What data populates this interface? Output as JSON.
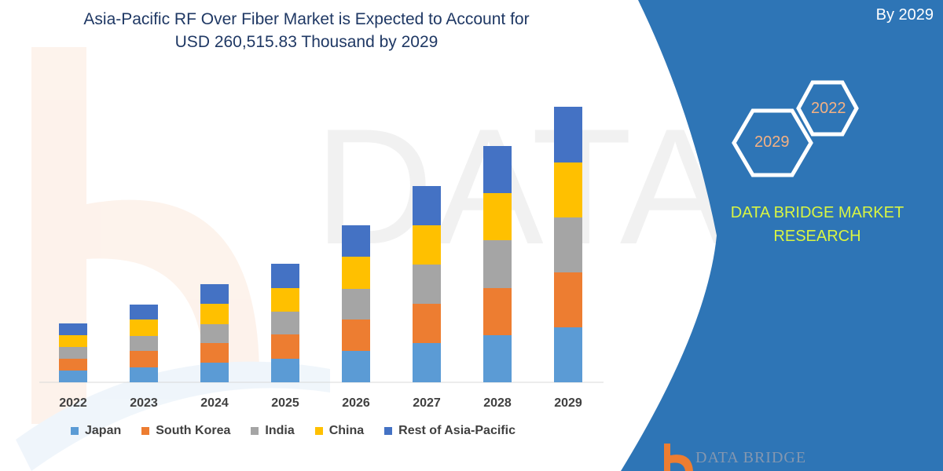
{
  "header": {
    "title_line1": "Asia-Pacific RF Over Fiber Market is Expected to Account for",
    "title_line2": "USD 260,515.83 Thousand by 2029"
  },
  "side_panel": {
    "top_text": "By 2029",
    "hex_large": "2029",
    "hex_small": "2022",
    "brand_line1": "DATA BRIDGE MARKET",
    "brand_line2": "RESEARCH",
    "logo_text": "DATA BRIDGE",
    "panel_color": "#2e75b6",
    "brand_color": "#d9f542"
  },
  "chart_data": {
    "type": "bar",
    "stacked": true,
    "title": "",
    "xlabel": "",
    "ylabel": "",
    "categories": [
      "2022",
      "2023",
      "2024",
      "2025",
      "2026",
      "2027",
      "2028",
      "2029"
    ],
    "series": [
      {
        "name": "Japan",
        "color": "#5b9bd5",
        "values": [
          15,
          19,
          25,
          30,
          40,
          50,
          60,
          70
        ]
      },
      {
        "name": "South Korea",
        "color": "#ed7d31",
        "values": [
          15,
          21,
          25,
          31,
          40,
          50,
          60,
          70
        ]
      },
      {
        "name": "India",
        "color": "#a5a5a5",
        "values": [
          15,
          19,
          24,
          29,
          39,
          50,
          61,
          70
        ]
      },
      {
        "name": "China",
        "color": "#ffc000",
        "values": [
          15,
          21,
          26,
          30,
          41,
          50,
          60,
          70
        ]
      },
      {
        "name": "Rest of Asia-Pacific",
        "color": "#4472c4",
        "values": [
          15,
          19,
          25,
          31,
          40,
          50,
          60,
          71
        ]
      }
    ],
    "ylim": [
      0,
      352
    ],
    "grid": false,
    "legend_position": "bottom",
    "y_axis_shown": false
  }
}
